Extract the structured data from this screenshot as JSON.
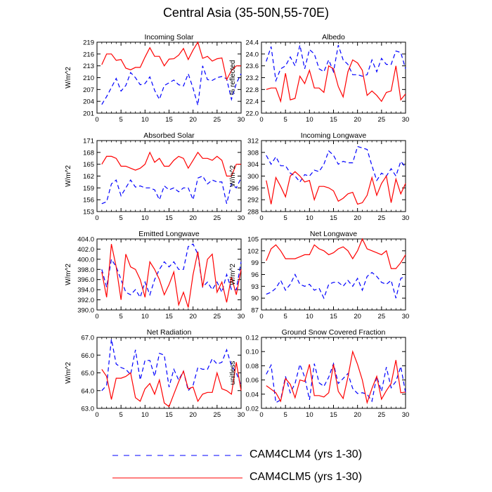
{
  "title": "Central Asia (35-50N,55-70E)",
  "colors": {
    "series0": "#0000ff",
    "series1": "#ff0000",
    "axis": "#000000"
  },
  "legend": [
    {
      "label": "CAM4CLM4 (yrs 1-30)",
      "color": "#0000ff",
      "dash": true
    },
    {
      "label": "CAM4CLM5 (yrs 1-30)",
      "color": "#ff0000",
      "dash": false
    }
  ],
  "chart_data": [
    {
      "type": "line",
      "title": "Incoming Solar",
      "ylabel": "W/m^2",
      "xlim": [
        0,
        30
      ],
      "ylim": [
        201,
        219
      ],
      "yticks": [
        201,
        204,
        207,
        210,
        213,
        216,
        219
      ],
      "ytick_decimals": 0,
      "xticks": [
        0,
        5,
        10,
        15,
        20,
        25,
        30
      ],
      "x": [
        1,
        2,
        3,
        4,
        5,
        6,
        7,
        8,
        9,
        10,
        11,
        12,
        13,
        14,
        15,
        16,
        17,
        18,
        19,
        20,
        21,
        22,
        23,
        24,
        25,
        26,
        27,
        28,
        29,
        30
      ],
      "series": [
        {
          "name": "CAM4CLM4 (yrs 1-30)",
          "values": [
            203.2,
            205.2,
            207.5,
            209.8,
            206.6,
            208.0,
            211.3,
            210.0,
            208.2,
            208.5,
            210.2,
            206.8,
            204.5,
            208.0,
            208.7,
            209.4,
            208.2,
            207.9,
            211.0,
            207.3,
            203.0,
            213.0,
            209.5,
            209.3,
            210.0,
            210.3,
            209.7,
            204.5,
            208.5,
            211.0
          ]
        },
        {
          "name": "CAM4CLM5 (yrs 1-30)",
          "values": [
            213.3,
            216.0,
            216.0,
            214.4,
            214.6,
            212.4,
            212.0,
            212.6,
            212.6,
            215.2,
            217.6,
            215.4,
            215.4,
            213.0,
            214.7,
            214.8,
            215.7,
            217.4,
            214.6,
            217.0,
            219.0,
            214.9,
            215.4,
            214.2,
            214.8,
            215.0,
            209.5,
            211.8,
            213.0,
            213.0
          ]
        }
      ]
    },
    {
      "type": "line",
      "title": "Albedo",
      "ylabel": "% reflected",
      "xlim": [
        0,
        30
      ],
      "ylim": [
        22.0,
        24.4
      ],
      "yticks": [
        22.0,
        22.4,
        22.8,
        23.2,
        23.6,
        24.0,
        24.4
      ],
      "ytick_decimals": 1,
      "xticks": [
        0,
        5,
        10,
        15,
        20,
        25,
        30
      ],
      "x": [
        1,
        2,
        3,
        4,
        5,
        6,
        7,
        8,
        9,
        10,
        11,
        12,
        13,
        14,
        15,
        16,
        17,
        18,
        19,
        20,
        21,
        22,
        23,
        24,
        25,
        26,
        27,
        28,
        29,
        30
      ],
      "series": [
        {
          "name": "CAM4CLM4 (yrs 1-30)",
          "values": [
            23.75,
            24.25,
            23.1,
            23.5,
            23.6,
            23.9,
            23.6,
            24.3,
            23.5,
            24.15,
            24.0,
            23.5,
            23.4,
            23.8,
            23.4,
            24.3,
            23.8,
            23.65,
            23.3,
            23.3,
            23.25,
            23.3,
            23.8,
            23.4,
            23.85,
            23.65,
            23.65,
            24.1,
            24.05,
            23.5
          ]
        },
        {
          "name": "CAM4CLM5 (yrs 1-30)",
          "values": [
            22.8,
            22.85,
            22.85,
            22.4,
            23.35,
            22.45,
            22.5,
            23.25,
            23.0,
            23.45,
            22.85,
            22.85,
            22.7,
            23.6,
            23.5,
            22.9,
            22.55,
            23.4,
            23.8,
            23.7,
            23.45,
            22.6,
            22.75,
            22.6,
            22.4,
            22.7,
            22.75,
            23.6,
            22.45,
            22.65
          ]
        }
      ]
    },
    {
      "type": "line",
      "title": "Absorbed Solar",
      "ylabel": "W/m^2",
      "xlim": [
        0,
        30
      ],
      "ylim": [
        153,
        171
      ],
      "yticks": [
        153,
        156,
        159,
        162,
        165,
        168,
        171
      ],
      "ytick_decimals": 0,
      "xticks": [
        0,
        5,
        10,
        15,
        20,
        25,
        30
      ],
      "x": [
        1,
        2,
        3,
        4,
        5,
        6,
        7,
        8,
        9,
        10,
        11,
        12,
        13,
        14,
        15,
        16,
        17,
        18,
        19,
        20,
        21,
        22,
        23,
        24,
        25,
        26,
        27,
        28,
        29,
        30
      ],
      "series": [
        {
          "name": "CAM4CLM4 (yrs 1-30)",
          "values": [
            155.0,
            155.5,
            160.0,
            161.0,
            157.0,
            159.0,
            161.0,
            159.2,
            159.5,
            159.0,
            159.0,
            158.5,
            156.0,
            159.5,
            158.5,
            159.0,
            158.0,
            159.0,
            159.0,
            156.0,
            161.5,
            162.0,
            160.0,
            161.0,
            160.5,
            160.5,
            155.0,
            160.0,
            159.0,
            161.5
          ]
        },
        {
          "name": "CAM4CLM5 (yrs 1-30)",
          "values": [
            165.0,
            167.0,
            167.0,
            166.5,
            164.5,
            164.5,
            164.0,
            163.5,
            164.0,
            165.0,
            168.0,
            165.5,
            166.5,
            164.5,
            164.5,
            166.0,
            167.0,
            166.5,
            164.0,
            166.0,
            168.0,
            166.5,
            166.5,
            166.0,
            167.0,
            166.0,
            162.0,
            162.0,
            165.0,
            165.0
          ]
        }
      ]
    },
    {
      "type": "line",
      "title": "Incoming Longwave",
      "ylabel": "W/m^2",
      "xlim": [
        0,
        30
      ],
      "ylim": [
        288,
        312
      ],
      "yticks": [
        288,
        292,
        296,
        300,
        304,
        308,
        312
      ],
      "ytick_decimals": 0,
      "xticks": [
        0,
        5,
        10,
        15,
        20,
        25,
        30
      ],
      "x": [
        1,
        2,
        3,
        4,
        5,
        6,
        7,
        8,
        9,
        10,
        11,
        12,
        13,
        14,
        15,
        16,
        17,
        18,
        19,
        20,
        21,
        22,
        23,
        24,
        25,
        26,
        27,
        28,
        29,
        30
      ],
      "series": [
        {
          "name": "CAM4CLM4 (yrs 1-30)",
          "values": [
            307.0,
            304.0,
            306.5,
            303.5,
            303.5,
            301.0,
            300.0,
            298.0,
            300.5,
            300.0,
            302.0,
            301.5,
            304.0,
            308.5,
            307.0,
            304.0,
            305.0,
            304.5,
            304.5,
            310.0,
            309.5,
            309.0,
            303.5,
            298.5,
            301.0,
            300.0,
            302.5,
            300.0,
            305.0,
            303.0
          ]
        },
        {
          "name": "CAM4CLM5 (yrs 1-30)",
          "values": [
            298.5,
            290.5,
            299.5,
            296.5,
            293.0,
            300.0,
            301.5,
            300.0,
            298.0,
            298.5,
            292.0,
            296.5,
            296.5,
            296.0,
            295.0,
            291.5,
            292.5,
            294.0,
            294.5,
            290.5,
            291.0,
            293.5,
            299.5,
            293.5,
            297.5,
            300.0,
            291.0,
            299.0,
            294.0,
            297.5
          ]
        }
      ]
    },
    {
      "type": "line",
      "title": "Emitted Longwave",
      "ylabel": "W/m^2",
      "xlim": [
        0,
        30
      ],
      "ylim": [
        390.0,
        404.0
      ],
      "yticks": [
        390.0,
        392.0,
        394.0,
        396.0,
        398.0,
        400.0,
        402.0,
        404.0
      ],
      "ytick_decimals": 1,
      "xticks": [
        0,
        5,
        10,
        15,
        20,
        25,
        30
      ],
      "x": [
        1,
        2,
        3,
        4,
        5,
        6,
        7,
        8,
        9,
        10,
        11,
        12,
        13,
        14,
        15,
        16,
        17,
        18,
        19,
        20,
        21,
        22,
        23,
        24,
        25,
        26,
        27,
        28,
        29,
        30
      ],
      "series": [
        {
          "name": "CAM4CLM4 (yrs 1-30)",
          "values": [
            398.0,
            394.5,
            400.0,
            398.5,
            396.0,
            393.5,
            393.0,
            394.0,
            392.5,
            395.5,
            393.0,
            396.0,
            398.0,
            399.5,
            398.5,
            399.5,
            398.0,
            398.0,
            402.5,
            403.0,
            401.0,
            394.5,
            395.5,
            394.0,
            395.5,
            393.5,
            397.0,
            394.0,
            394.0,
            399.5
          ]
        },
        {
          "name": "CAM4CLM5 (yrs 1-30)",
          "values": [
            397.5,
            392.5,
            403.0,
            398.5,
            392.0,
            401.0,
            398.5,
            398.0,
            396.0,
            392.5,
            399.5,
            398.0,
            396.0,
            393.0,
            395.0,
            397.5,
            391.0,
            393.5,
            390.5,
            397.0,
            401.5,
            394.5,
            400.0,
            401.0,
            393.5,
            395.5,
            391.5,
            396.5,
            393.0,
            398.0
          ]
        }
      ]
    },
    {
      "type": "line",
      "title": "Net Longwave",
      "ylabel": "W/m^2",
      "xlim": [
        0,
        30
      ],
      "ylim": [
        87,
        105
      ],
      "yticks": [
        87,
        90,
        93,
        96,
        99,
        102,
        105
      ],
      "ytick_decimals": 0,
      "xticks": [
        0,
        5,
        10,
        15,
        20,
        25,
        30
      ],
      "x": [
        1,
        2,
        3,
        4,
        5,
        6,
        7,
        8,
        9,
        10,
        11,
        12,
        13,
        14,
        15,
        16,
        17,
        18,
        19,
        20,
        21,
        22,
        23,
        24,
        25,
        26,
        27,
        28,
        29,
        30
      ],
      "series": [
        {
          "name": "CAM4CLM4 (yrs 1-30)",
          "values": [
            91.0,
            91.5,
            92.5,
            94.5,
            92.0,
            93.5,
            96.0,
            93.5,
            93.0,
            93.5,
            92.0,
            92.5,
            90.0,
            93.5,
            94.0,
            94.0,
            93.0,
            94.5,
            93.0,
            95.0,
            92.0,
            95.5,
            96.5,
            95.5,
            94.0,
            93.5,
            94.5,
            90.0,
            95.0,
            95.5
          ]
        },
        {
          "name": "CAM4CLM5 (yrs 1-30)",
          "values": [
            99.5,
            102.5,
            103.5,
            102.0,
            100.0,
            100.0,
            100.0,
            100.5,
            101.0,
            101.0,
            103.5,
            102.5,
            102.0,
            101.0,
            101.5,
            102.5,
            103.0,
            102.0,
            100.0,
            102.0,
            105.0,
            102.5,
            102.0,
            101.5,
            101.0,
            102.0,
            97.5,
            97.5,
            99.0,
            101.0
          ]
        }
      ]
    },
    {
      "type": "line",
      "title": "Net Radiation",
      "ylabel": "W/m^2",
      "xlim": [
        0,
        30
      ],
      "ylim": [
        63.0,
        67.0
      ],
      "yticks": [
        63.0,
        64.0,
        65.0,
        66.0,
        67.0
      ],
      "ytick_decimals": 1,
      "xticks": [
        0,
        5,
        10,
        15,
        20,
        25,
        30
      ],
      "x": [
        1,
        2,
        3,
        4,
        5,
        6,
        7,
        8,
        9,
        10,
        11,
        12,
        13,
        14,
        15,
        16,
        17,
        18,
        19,
        20,
        21,
        22,
        23,
        24,
        25,
        26,
        27,
        28,
        29,
        30
      ],
      "series": [
        {
          "name": "CAM4CLM4 (yrs 1-30)",
          "values": [
            64.0,
            64.3,
            66.9,
            65.5,
            65.3,
            65.2,
            64.9,
            66.3,
            64.6,
            65.7,
            65.7,
            64.8,
            66.1,
            66.0,
            64.2,
            65.2,
            64.6,
            65.1,
            64.0,
            64.3,
            65.3,
            65.2,
            65.2,
            65.8,
            65.5,
            65.6,
            66.3,
            65.4,
            65.0,
            64.3
          ]
        },
        {
          "name": "CAM4CLM5 (yrs 1-30)",
          "values": [
            65.2,
            64.8,
            63.5,
            64.7,
            64.7,
            64.8,
            65.0,
            63.6,
            63.4,
            64.1,
            64.4,
            63.8,
            64.6,
            63.3,
            63.1,
            63.8,
            64.5,
            65.1,
            64.1,
            64.2,
            63.4,
            63.8,
            63.9,
            63.9,
            65.0,
            64.1,
            64.0,
            63.8,
            65.6,
            64.0
          ]
        }
      ]
    },
    {
      "type": "line",
      "title": "Ground Snow Covered Fraction",
      "ylabel": "unitless",
      "xlim": [
        0,
        30
      ],
      "ylim": [
        0.02,
        0.12
      ],
      "yticks": [
        0.02,
        0.04,
        0.06,
        0.08,
        0.1,
        0.12
      ],
      "ytick_decimals": 2,
      "xticks": [
        0,
        5,
        10,
        15,
        20,
        25,
        30
      ],
      "x": [
        1,
        2,
        3,
        4,
        5,
        6,
        7,
        8,
        9,
        10,
        11,
        12,
        13,
        14,
        15,
        16,
        17,
        18,
        19,
        20,
        21,
        22,
        23,
        24,
        25,
        26,
        27,
        28,
        29,
        30
      ],
      "series": [
        {
          "name": "CAM4CLM4 (yrs 1-30)",
          "values": [
            0.068,
            0.081,
            0.028,
            0.032,
            0.065,
            0.042,
            0.055,
            0.082,
            0.064,
            0.032,
            0.083,
            0.056,
            0.051,
            0.064,
            0.083,
            0.055,
            0.062,
            0.069,
            0.048,
            0.041,
            0.042,
            0.04,
            0.03,
            0.065,
            0.044,
            0.078,
            0.049,
            0.058,
            0.079,
            0.042
          ]
        },
        {
          "name": "CAM4CLM5 (yrs 1-30)",
          "values": [
            0.052,
            0.047,
            0.042,
            0.03,
            0.062,
            0.054,
            0.035,
            0.06,
            0.058,
            0.082,
            0.038,
            0.038,
            0.036,
            0.042,
            0.082,
            0.044,
            0.034,
            0.064,
            0.1,
            0.082,
            0.06,
            0.028,
            0.048,
            0.065,
            0.033,
            0.045,
            0.055,
            0.088,
            0.042,
            0.043
          ]
        }
      ]
    }
  ]
}
